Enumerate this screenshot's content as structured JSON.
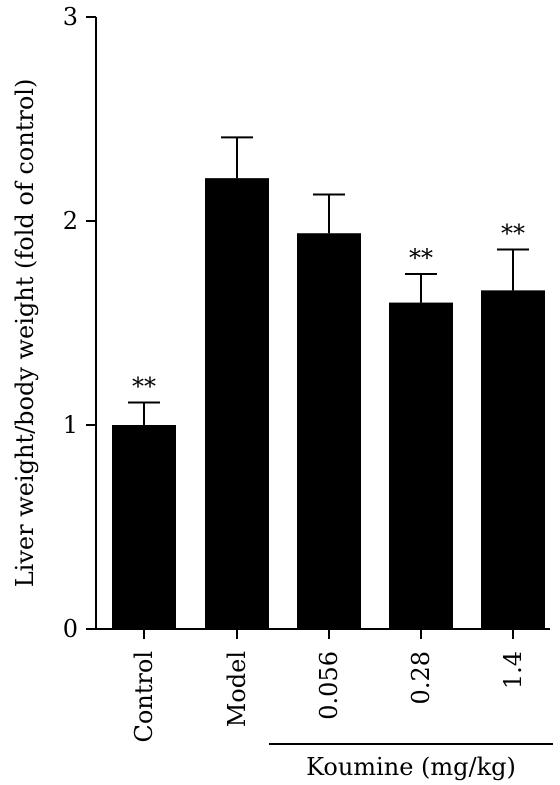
{
  "chart_data": {
    "type": "bar",
    "title": "",
    "ylabel": "Liver weight/body weight (fold of control)",
    "xlabel": "",
    "ylim": [
      0,
      3
    ],
    "yticks": [
      0,
      1,
      2,
      3
    ],
    "yticks_labels": [
      "0",
      "1",
      "2",
      "3"
    ],
    "categories": [
      "Control",
      "Model",
      "0.056",
      "0.28",
      "1.4"
    ],
    "values": [
      1.0,
      2.21,
      1.94,
      1.6,
      1.66
    ],
    "error": [
      0.11,
      0.2,
      0.19,
      0.14,
      0.2
    ],
    "significance": [
      "**",
      "",
      "",
      "**",
      "**"
    ],
    "group_label": "Koumine (mg/kg)",
    "group_members": [
      "0.056",
      "0.28",
      "1.4"
    ],
    "bar_color": "#000000",
    "grid": false,
    "legend": "none"
  }
}
